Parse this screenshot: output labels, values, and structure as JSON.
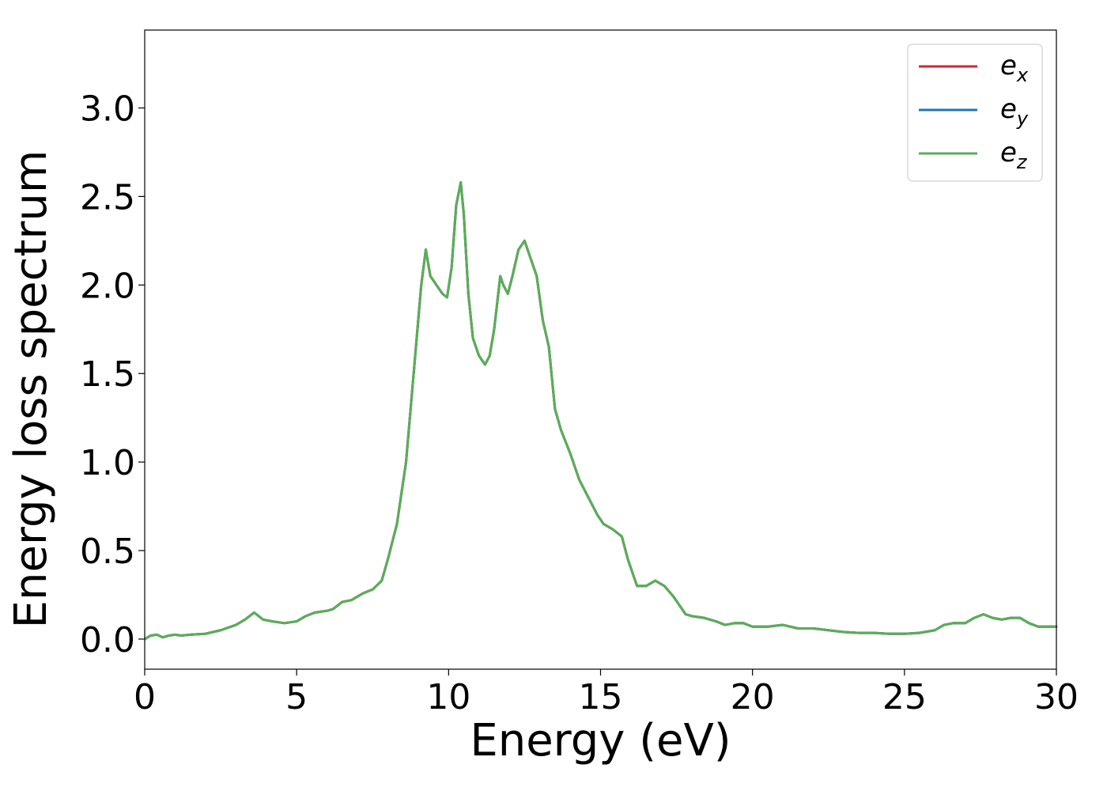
{
  "chart_data": {
    "type": "line",
    "title": "",
    "xlabel": "Energy (eV)",
    "ylabel": "Energy loss spectrum",
    "xlim": [
      0,
      30
    ],
    "ylim": [
      -0.17,
      3.44
    ],
    "xticks": [
      0,
      5,
      10,
      15,
      20,
      25,
      30
    ],
    "yticks": [
      0.0,
      0.5,
      1.0,
      1.5,
      2.0,
      2.5,
      3.0
    ],
    "xtick_labels": [
      "0",
      "5",
      "10",
      "15",
      "20",
      "25",
      "30"
    ],
    "ytick_labels": [
      "0.0",
      "0.5",
      "1.0",
      "1.5",
      "2.0",
      "2.5",
      "3.0"
    ],
    "grid": false,
    "legend_position": "top-right",
    "x": [
      0,
      0.2,
      0.4,
      0.6,
      0.8,
      1.0,
      1.2,
      1.5,
      2.0,
      2.5,
      3.0,
      3.3,
      3.6,
      3.9,
      4.2,
      4.6,
      5.0,
      5.3,
      5.6,
      6.0,
      6.2,
      6.5,
      6.8,
      7.0,
      7.2,
      7.5,
      7.8,
      8.0,
      8.3,
      8.6,
      8.9,
      9.1,
      9.25,
      9.4,
      9.6,
      9.8,
      9.95,
      10.1,
      10.25,
      10.4,
      10.5,
      10.65,
      10.8,
      11.0,
      11.2,
      11.35,
      11.5,
      11.7,
      11.8,
      11.95,
      12.1,
      12.3,
      12.5,
      12.7,
      12.9,
      13.1,
      13.3,
      13.5,
      13.7,
      14.0,
      14.3,
      14.6,
      14.9,
      15.1,
      15.4,
      15.7,
      15.9,
      16.2,
      16.5,
      16.8,
      17.1,
      17.4,
      17.8,
      18.0,
      18.4,
      18.8,
      19.1,
      19.4,
      19.7,
      20.0,
      20.5,
      21.0,
      21.5,
      22.0,
      22.5,
      23.0,
      23.5,
      24.0,
      24.5,
      25.0,
      25.5,
      26.0,
      26.3,
      26.6,
      27.0,
      27.3,
      27.6,
      27.9,
      28.2,
      28.5,
      28.8,
      29.1,
      29.4,
      29.7,
      30.0
    ],
    "series": [
      {
        "name": "e_x",
        "color": "#d62728",
        "values": [
          0.0,
          0.02,
          0.025,
          0.01,
          0.02,
          0.025,
          0.02,
          0.025,
          0.03,
          0.05,
          0.08,
          0.11,
          0.15,
          0.11,
          0.1,
          0.09,
          0.1,
          0.13,
          0.15,
          0.16,
          0.17,
          0.21,
          0.22,
          0.24,
          0.26,
          0.28,
          0.33,
          0.45,
          0.65,
          1.0,
          1.6,
          2.0,
          2.2,
          2.05,
          2.0,
          1.95,
          1.93,
          2.1,
          2.45,
          2.58,
          2.4,
          1.95,
          1.7,
          1.6,
          1.55,
          1.6,
          1.75,
          2.05,
          2.0,
          1.95,
          2.05,
          2.2,
          2.25,
          2.15,
          2.05,
          1.8,
          1.65,
          1.3,
          1.18,
          1.05,
          0.9,
          0.8,
          0.7,
          0.65,
          0.62,
          0.58,
          0.45,
          0.3,
          0.3,
          0.33,
          0.3,
          0.24,
          0.14,
          0.13,
          0.12,
          0.1,
          0.08,
          0.09,
          0.09,
          0.07,
          0.07,
          0.08,
          0.06,
          0.06,
          0.05,
          0.04,
          0.035,
          0.035,
          0.03,
          0.03,
          0.035,
          0.05,
          0.08,
          0.09,
          0.09,
          0.12,
          0.14,
          0.12,
          0.11,
          0.12,
          0.12,
          0.09,
          0.07,
          0.07,
          0.07
        ]
      },
      {
        "name": "e_y",
        "color": "#1f77b4",
        "values": [
          0.0,
          0.02,
          0.025,
          0.01,
          0.02,
          0.025,
          0.02,
          0.025,
          0.03,
          0.05,
          0.08,
          0.11,
          0.15,
          0.11,
          0.1,
          0.09,
          0.1,
          0.13,
          0.15,
          0.16,
          0.17,
          0.21,
          0.22,
          0.24,
          0.26,
          0.28,
          0.33,
          0.45,
          0.65,
          1.0,
          1.6,
          2.0,
          2.2,
          2.05,
          2.0,
          1.95,
          1.93,
          2.1,
          2.45,
          2.58,
          2.4,
          1.95,
          1.7,
          1.6,
          1.55,
          1.6,
          1.75,
          2.05,
          2.0,
          1.95,
          2.05,
          2.2,
          2.25,
          2.15,
          2.05,
          1.8,
          1.65,
          1.3,
          1.18,
          1.05,
          0.9,
          0.8,
          0.7,
          0.65,
          0.62,
          0.58,
          0.45,
          0.3,
          0.3,
          0.33,
          0.3,
          0.24,
          0.14,
          0.13,
          0.12,
          0.1,
          0.08,
          0.09,
          0.09,
          0.07,
          0.07,
          0.08,
          0.06,
          0.06,
          0.05,
          0.04,
          0.035,
          0.035,
          0.03,
          0.03,
          0.035,
          0.05,
          0.08,
          0.09,
          0.09,
          0.12,
          0.14,
          0.12,
          0.11,
          0.12,
          0.12,
          0.09,
          0.07,
          0.07,
          0.07
        ]
      },
      {
        "name": "e_z",
        "color": "#5aae55",
        "values": [
          0.0,
          0.02,
          0.025,
          0.01,
          0.02,
          0.025,
          0.02,
          0.025,
          0.03,
          0.05,
          0.08,
          0.11,
          0.15,
          0.11,
          0.1,
          0.09,
          0.1,
          0.13,
          0.15,
          0.16,
          0.17,
          0.21,
          0.22,
          0.24,
          0.26,
          0.28,
          0.33,
          0.45,
          0.65,
          1.0,
          1.6,
          2.0,
          2.2,
          2.05,
          2.0,
          1.95,
          1.93,
          2.1,
          2.45,
          2.58,
          2.4,
          1.95,
          1.7,
          1.6,
          1.55,
          1.6,
          1.75,
          2.05,
          2.0,
          1.95,
          2.05,
          2.2,
          2.25,
          2.15,
          2.05,
          1.8,
          1.65,
          1.3,
          1.18,
          1.05,
          0.9,
          0.8,
          0.7,
          0.65,
          0.62,
          0.58,
          0.45,
          0.3,
          0.3,
          0.33,
          0.3,
          0.24,
          0.14,
          0.13,
          0.12,
          0.1,
          0.08,
          0.09,
          0.09,
          0.07,
          0.07,
          0.08,
          0.06,
          0.06,
          0.05,
          0.04,
          0.035,
          0.035,
          0.03,
          0.03,
          0.035,
          0.05,
          0.08,
          0.09,
          0.09,
          0.12,
          0.14,
          0.12,
          0.11,
          0.12,
          0.12,
          0.09,
          0.07,
          0.07,
          0.07
        ]
      }
    ],
    "legend": [
      {
        "base": "e",
        "sub": "x",
        "color": "#d62728"
      },
      {
        "base": "e",
        "sub": "y",
        "color": "#1f77b4"
      },
      {
        "base": "e",
        "sub": "z",
        "color": "#5aae55"
      }
    ]
  }
}
